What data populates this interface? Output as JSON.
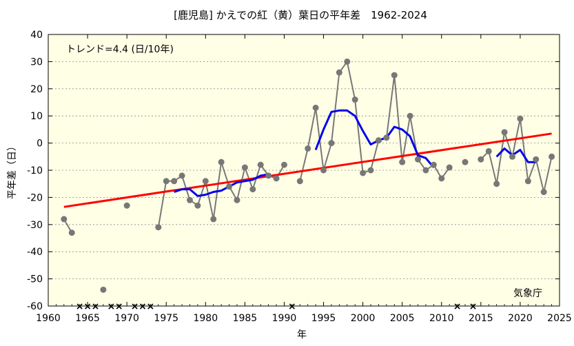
{
  "chart_data": {
    "type": "line",
    "title": "[鹿児島] かえでの紅（黄）葉日の平年差　1962-2024",
    "xlabel": "年",
    "ylabel": "平年差（日）",
    "xlim": [
      1960,
      2025
    ],
    "ylim": [
      -60,
      40
    ],
    "x_ticks": [
      1960,
      1965,
      1970,
      1975,
      1980,
      1985,
      1990,
      1995,
      2000,
      2005,
      2010,
      2015,
      2020,
      2025
    ],
    "y_ticks": [
      -60,
      -50,
      -40,
      -30,
      -20,
      -10,
      0,
      10,
      20,
      30,
      40
    ],
    "background_color": "#ffffe6",
    "grid": "y-dashed",
    "trend_label": "トレンド=4.4 (日/10年)",
    "source_label": "気象庁",
    "series": [
      {
        "role": "observed",
        "color": "#777777",
        "points": [
          [
            1962,
            -28
          ],
          [
            1963,
            -33
          ],
          [
            1967,
            -54
          ],
          [
            1970,
            -23
          ],
          [
            1974,
            -31
          ],
          [
            1975,
            -14
          ],
          [
            1976,
            -14
          ],
          [
            1977,
            -12
          ],
          [
            1978,
            -21
          ],
          [
            1979,
            -23
          ],
          [
            1980,
            -14
          ],
          [
            1981,
            -28
          ],
          [
            1982,
            -7
          ],
          [
            1983,
            -16
          ],
          [
            1984,
            -21
          ],
          [
            1985,
            -9
          ],
          [
            1986,
            -17
          ],
          [
            1987,
            -8
          ],
          [
            1988,
            -12
          ],
          [
            1989,
            -13
          ],
          [
            1990,
            -8
          ],
          [
            1992,
            -14
          ],
          [
            1993,
            -2
          ],
          [
            1994,
            13
          ],
          [
            1995,
            -10
          ],
          [
            1996,
            0
          ],
          [
            1997,
            26
          ],
          [
            1998,
            30
          ],
          [
            1999,
            16
          ],
          [
            2000,
            -11
          ],
          [
            2001,
            -10
          ],
          [
            2002,
            1
          ],
          [
            2003,
            2
          ],
          [
            2004,
            25
          ],
          [
            2005,
            -7
          ],
          [
            2006,
            10
          ],
          [
            2007,
            -6
          ],
          [
            2008,
            -10
          ],
          [
            2009,
            -8
          ],
          [
            2010,
            -13
          ],
          [
            2011,
            -9
          ],
          [
            2013,
            -7
          ],
          [
            2015,
            -6
          ],
          [
            2016,
            -3
          ],
          [
            2017,
            -15
          ],
          [
            2018,
            4
          ],
          [
            2019,
            -5
          ],
          [
            2020,
            9
          ],
          [
            2021,
            -14
          ],
          [
            2022,
            -6
          ],
          [
            2023,
            -18
          ],
          [
            2024,
            -5
          ]
        ],
        "breaks_after": [
          1963,
          1967,
          1970,
          1990,
          2011,
          2013
        ]
      },
      {
        "role": "5-year running mean",
        "color": "#0000ee",
        "segments": [
          [
            [
              1976,
              -18
            ],
            [
              1977,
              -17
            ],
            [
              1978,
              -17
            ],
            [
              1979,
              -19.5
            ],
            [
              1980,
              -19
            ],
            [
              1981,
              -18
            ],
            [
              1982,
              -17.5
            ],
            [
              1983,
              -16
            ],
            [
              1984,
              -14.5
            ],
            [
              1985,
              -14
            ],
            [
              1986,
              -13.5
            ],
            [
              1987,
              -12
            ],
            [
              1988,
              -11.5
            ]
          ],
          [
            [
              1994,
              -2.5
            ],
            [
              1995,
              5
            ],
            [
              1996,
              11.5
            ],
            [
              1997,
              12
            ],
            [
              1998,
              12
            ],
            [
              1999,
              10
            ],
            [
              2000,
              4.5
            ],
            [
              2001,
              -0.5
            ],
            [
              2002,
              1
            ],
            [
              2003,
              2
            ],
            [
              2004,
              6
            ],
            [
              2005,
              5
            ],
            [
              2006,
              2.5
            ],
            [
              2007,
              -4.5
            ],
            [
              2008,
              -5.5
            ],
            [
              2009,
              -9
            ]
          ],
          [
            [
              2017,
              -5
            ],
            [
              2018,
              -2
            ],
            [
              2019,
              -4.5
            ],
            [
              2020,
              -2.5
            ],
            [
              2021,
              -7
            ],
            [
              2022,
              -7
            ]
          ]
        ]
      },
      {
        "role": "trend",
        "color": "#ff0000",
        "points": [
          [
            1962,
            -23.5
          ],
          [
            2024,
            3.5
          ]
        ]
      }
    ],
    "missing_years": [
      1964,
      1965,
      1966,
      1968,
      1969,
      1971,
      1972,
      1973,
      1991,
      2012,
      2014
    ],
    "missing_marker": "×"
  }
}
